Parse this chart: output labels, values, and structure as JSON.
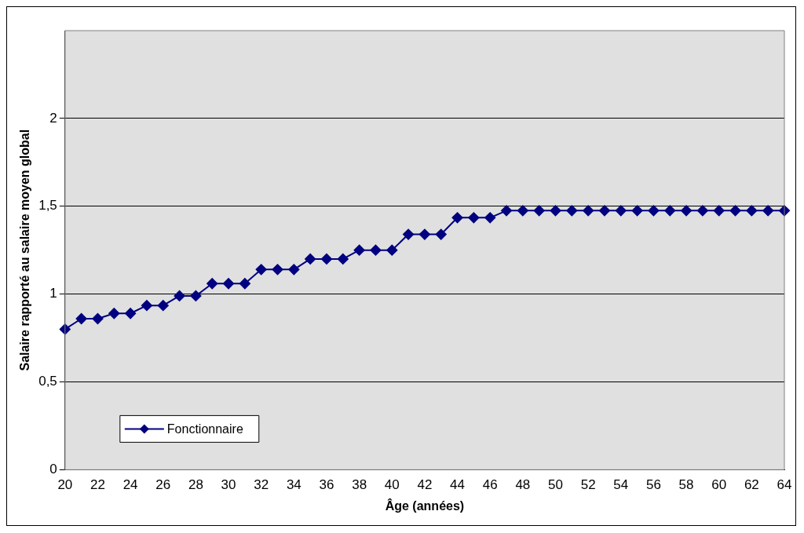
{
  "chart_data": {
    "type": "line",
    "xlabel": "Âge (années)",
    "ylabel": "Salaire rapporté au salaire moyen global",
    "categories": [
      "20",
      null,
      "22",
      null,
      "24",
      null,
      "26",
      null,
      "28",
      null,
      "30",
      null,
      "32",
      null,
      "34",
      null,
      "36",
      null,
      "38",
      null,
      "40",
      null,
      "42",
      null,
      "44",
      null,
      "46",
      null,
      "48",
      null,
      "50",
      null,
      "52",
      null,
      "54",
      null,
      "56",
      null,
      "58",
      null,
      "60",
      null,
      "62",
      null,
      "64"
    ],
    "series": [
      {
        "name": "Fonctionnaire",
        "color": "#000080",
        "values": [
          0.8,
          0.86,
          0.86,
          0.89,
          0.89,
          0.935,
          0.935,
          0.99,
          0.99,
          1.06,
          1.06,
          1.06,
          1.14,
          1.14,
          1.14,
          1.2,
          1.2,
          1.2,
          1.25,
          1.25,
          1.25,
          1.34,
          1.34,
          1.34,
          1.435,
          1.435,
          1.435,
          1.475,
          1.475,
          1.475,
          1.475,
          1.475,
          1.475,
          1.475,
          1.475,
          1.475,
          1.475,
          1.475,
          1.475,
          1.475,
          1.475,
          1.475,
          1.475,
          1.475,
          1.475
        ]
      }
    ],
    "ylim": [
      0,
      2.5
    ],
    "yticks": [
      0,
      {
        "value": 0.5,
        "label": "0,5"
      },
      1,
      {
        "value": 1.5,
        "label": "1,5"
      },
      2
    ],
    "grid": "y",
    "legend": "bottom left",
    "marker": "diamond",
    "line_style": "solid"
  }
}
